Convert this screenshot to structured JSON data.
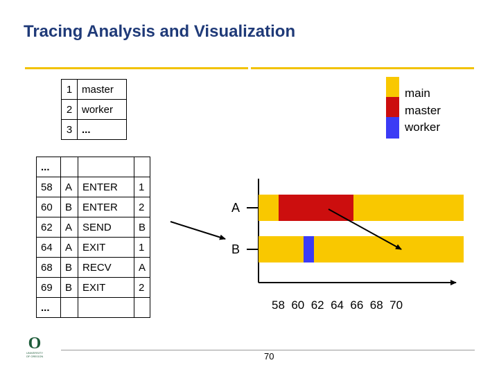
{
  "slide": {
    "title": "Tracing Analysis and Visualization",
    "page_number": "70"
  },
  "group_table": [
    {
      "id": "1",
      "name": "master"
    },
    {
      "id": "2",
      "name": "worker"
    },
    {
      "id": "3",
      "name": "..."
    }
  ],
  "legend": [
    {
      "label": "main",
      "color": "#f9c800"
    },
    {
      "label": "master",
      "color": "#cc0e0e"
    },
    {
      "label": "worker",
      "color": "#3b3bf5"
    }
  ],
  "trace_table": {
    "rows": [
      [
        "...",
        "",
        "",
        ""
      ],
      [
        "58",
        "A",
        "ENTER",
        "1"
      ],
      [
        "60",
        "B",
        "ENTER",
        "2"
      ],
      [
        "62",
        "A",
        "SEND",
        "B"
      ],
      [
        "64",
        "A",
        "EXIT",
        "1"
      ],
      [
        "68",
        "B",
        "RECV",
        "A"
      ],
      [
        "69",
        "B",
        "EXIT",
        "2"
      ],
      [
        "...",
        "",
        "",
        ""
      ]
    ]
  },
  "timeline": {
    "process_labels": [
      "A",
      "B"
    ],
    "x_ticks": "58  60  62  64  66  68  70"
  },
  "colors": {
    "title": "#1f3a78",
    "accent_rule": "#f2c200",
    "main": "#f9c800",
    "master": "#cc0e0e",
    "worker": "#3b3bf5"
  },
  "logo": {
    "mark": "O",
    "line1": "UNIVERSITY",
    "line2": "OF OREGON"
  }
}
